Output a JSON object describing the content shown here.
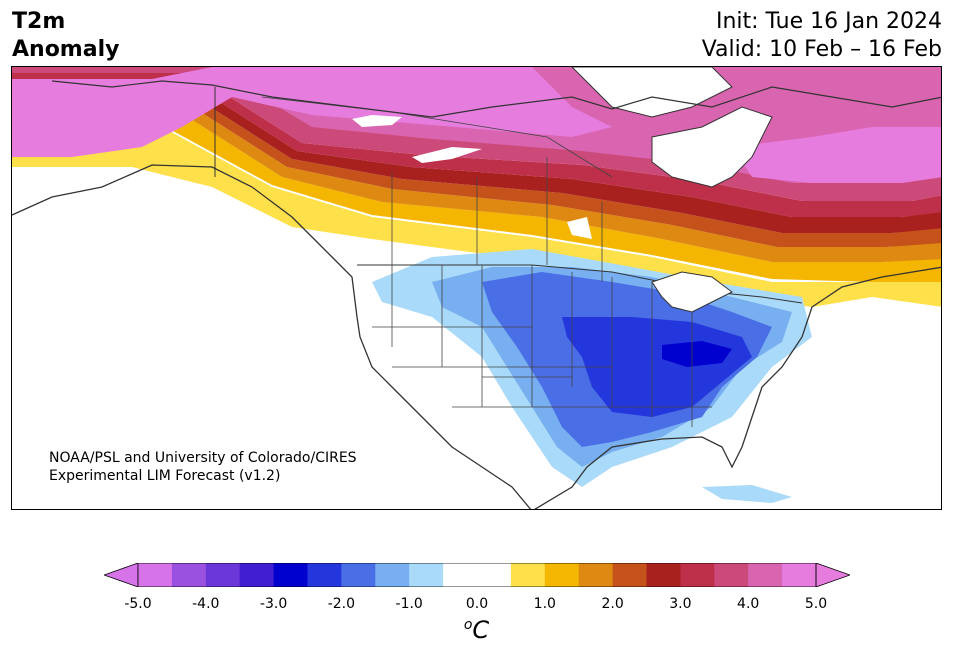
{
  "header": {
    "title_line1": "T2m",
    "title_line2": "Anomaly",
    "init": "Init: Tue 16 Jan 2024",
    "valid": "Valid: 10 Feb – 16 Feb"
  },
  "map": {
    "region": "North America",
    "credit_line1": "NOAA/PSL and University of Colorado/CIRES",
    "credit_line2": "Experimental LIM Forecast (v1.2)"
  },
  "colorbar": {
    "ticks": [
      "-5.0",
      "-4.0",
      "-3.0",
      "-2.0",
      "-1.0",
      "0.0",
      "1.0",
      "2.0",
      "3.0",
      "4.0",
      "5.0"
    ],
    "unit_sup": "o",
    "unit": "C",
    "colors": [
      "#d673e8",
      "#9b51e0",
      "#6b37d9",
      "#3f1fd1",
      "#0000cf",
      "#2437dc",
      "#4a6ee5",
      "#77aff1",
      "#aadaf9",
      "#ffffff",
      "#ffffff",
      "#fee04a",
      "#f4b600",
      "#de8a12",
      "#c5521a",
      "#a8211f",
      "#be2f4a",
      "#cc4a7a",
      "#d965b0",
      "#e77cdf"
    ]
  }
}
